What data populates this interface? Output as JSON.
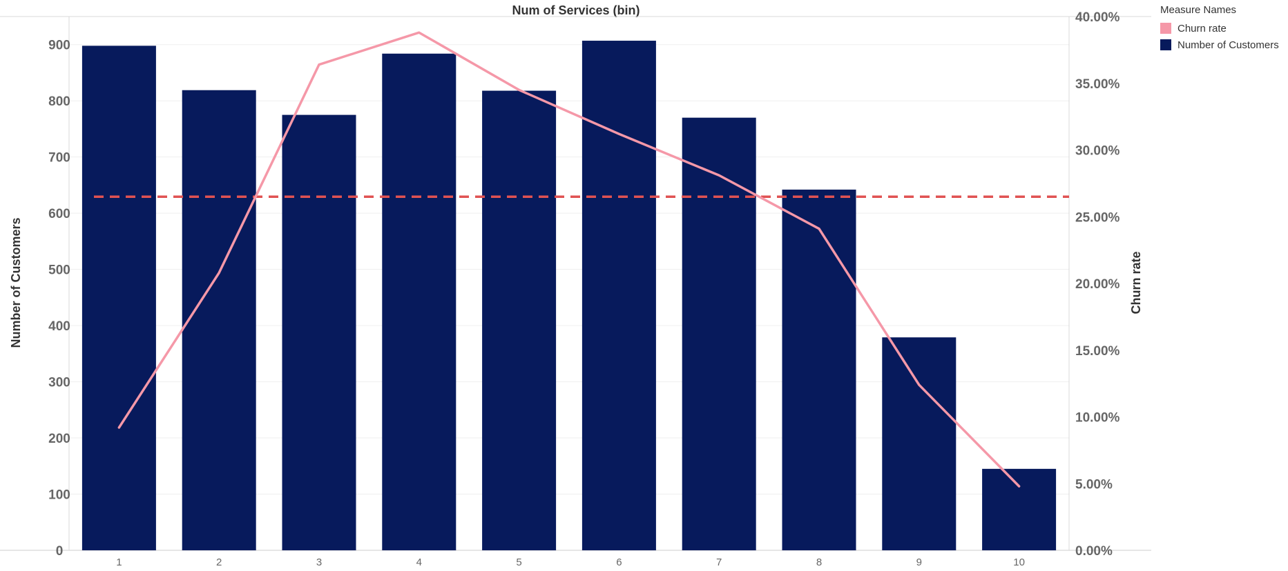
{
  "chart_data": {
    "type": "bar",
    "title": "Num of Services (bin)",
    "categories": [
      "1",
      "2",
      "3",
      "4",
      "5",
      "6",
      "7",
      "8",
      "9",
      "10"
    ],
    "series": [
      {
        "name": "Number of Customers",
        "type": "bar",
        "axis": "left",
        "color": "#071a5c",
        "values": [
          898,
          819,
          775,
          884,
          818,
          907,
          770,
          642,
          379,
          145
        ]
      },
      {
        "name": "Churn rate",
        "type": "line",
        "axis": "right",
        "color": "#f598a8",
        "values": [
          9.2,
          20.8,
          36.4,
          38.8,
          34.5,
          31.2,
          28.1,
          24.1,
          12.4,
          4.8
        ]
      }
    ],
    "ylabel": "Number of Customers",
    "y2label": "Churn rate",
    "ylim": [
      0,
      950
    ],
    "y2lim": [
      0,
      40
    ],
    "yticks": [
      "0",
      "100",
      "200",
      "300",
      "400",
      "500",
      "600",
      "700",
      "800",
      "900"
    ],
    "y2ticks": [
      "0.00%",
      "5.00%",
      "10.00%",
      "15.00%",
      "20.00%",
      "25.00%",
      "30.00%",
      "35.00%",
      "40.00%"
    ],
    "reference_line": {
      "axis": "right",
      "value": 26.5,
      "style": "dashed",
      "color": "#e05252"
    },
    "grid": true,
    "legend": {
      "title": "Measure Names",
      "position": "top-right",
      "items": [
        {
          "label": "Churn rate",
          "color": "#f598a8"
        },
        {
          "label": "Number of Customers",
          "color": "#071a5c"
        }
      ]
    }
  }
}
